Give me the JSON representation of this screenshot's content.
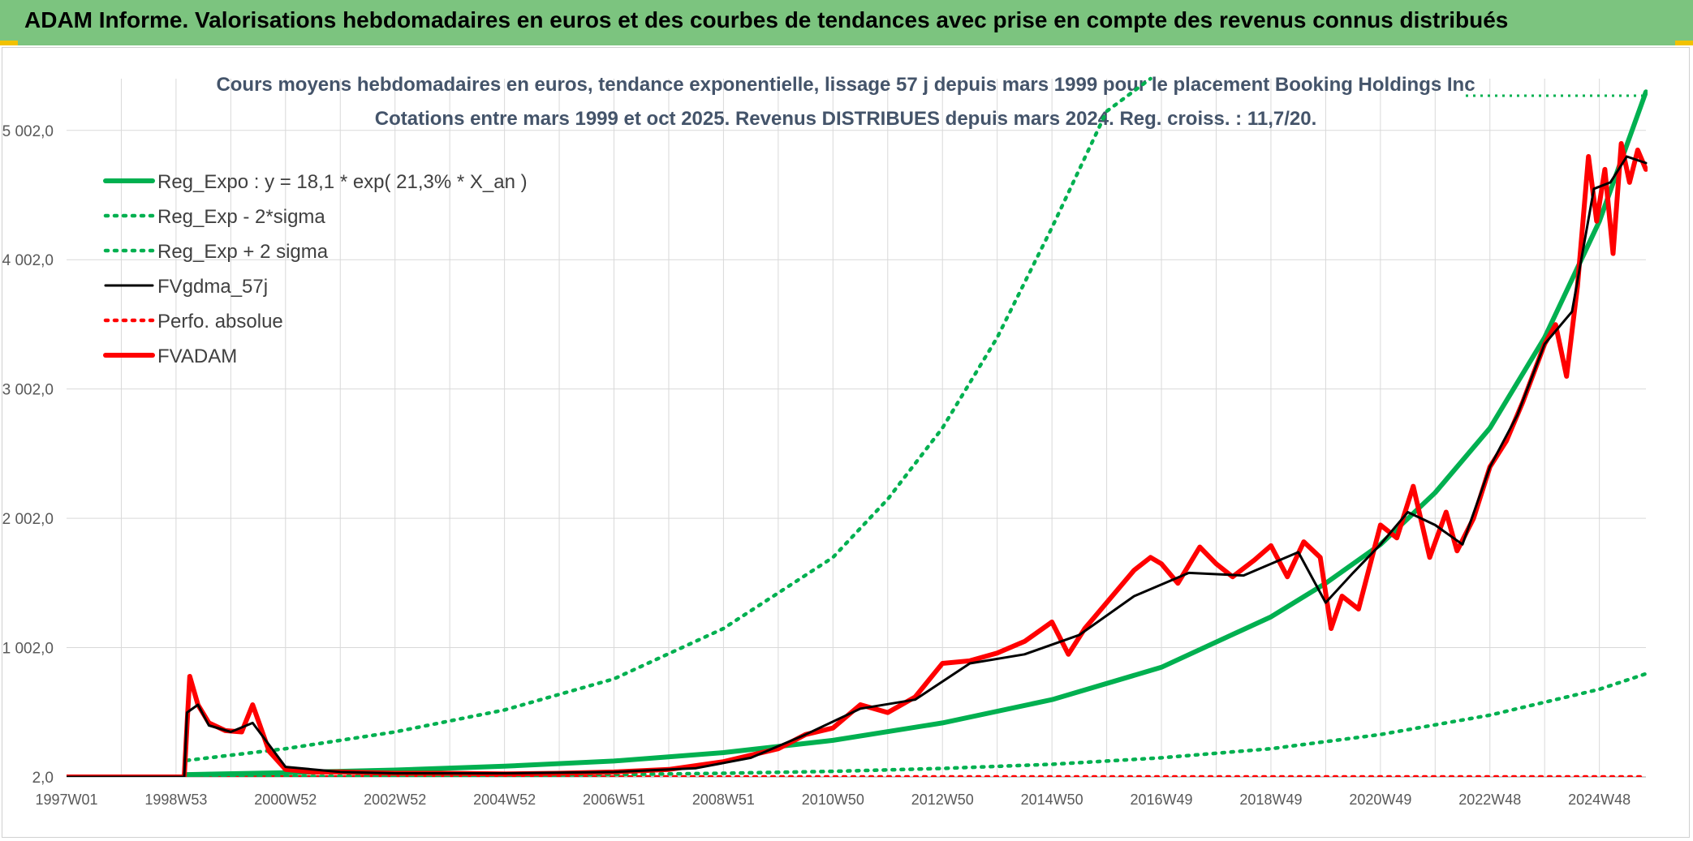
{
  "header": {
    "title": "ADAM Informe. Valorisations hebdomadaires en euros et des courbes de tendances avec prise en compte des revenus connus distribués"
  },
  "colors": {
    "banner": "#7cc47f",
    "reg_expo": "#00b050",
    "fvgdma": "#000000",
    "fvadam": "#ff0000",
    "perfo": "#ff0000",
    "grid": "#d9d9d9"
  },
  "chart_data": {
    "type": "line",
    "title": "Cours moyens hebdomadaires en euros, tendance exponentielle, lissage 57 j depuis mars 1999 pour le placement Booking Holdings Inc",
    "subtitle": "Cotations entre mars 1999 et oct 2025. Revenus DISTRIBUES depuis mars 2024. Reg. croiss. : 11,7/20.",
    "xlabel": "",
    "ylabel": "",
    "x_range": [
      1997.0,
      2025.85
    ],
    "ylim": [
      2.0,
      5402.0
    ],
    "y_ticks": [
      2.0,
      1002.0,
      2002.0,
      3002.0,
      4002.0,
      5002.0
    ],
    "y_tick_labels": [
      "2,0",
      "1 002,0",
      "2 002,0",
      "3 002,0",
      "4 002,0",
      "5 002,0"
    ],
    "x_ticks": [
      1997.0,
      1999.0,
      2001.0,
      2003.0,
      2005.0,
      2007.0,
      2009.0,
      2011.0,
      2013.0,
      2015.0,
      2017.0,
      2019.0,
      2021.0,
      2023.0,
      2025.0
    ],
    "x_tick_labels": [
      "1997W01",
      "1998W53",
      "2000W52",
      "2002W52",
      "2004W52",
      "2006W51",
      "2008W51",
      "2010W50",
      "2012W50",
      "2014W50",
      "2016W49",
      "2018W49",
      "2020W49",
      "2022W48",
      "2024W48"
    ],
    "grid": true,
    "legend_position": "top-left",
    "series": [
      {
        "name": "Reg_Expo : y = 18,1 * exp( 21,3% *  X_an )",
        "style": "solid-thick",
        "color": "#00b050",
        "x": [
          1999.2,
          2001,
          2003,
          2005,
          2007,
          2009,
          2011,
          2013,
          2015,
          2017,
          2019,
          2020,
          2021,
          2022,
          2023,
          2024,
          2025,
          2025.85
        ],
        "values": [
          20,
          35,
          55,
          85,
          125,
          190,
          285,
          420,
          600,
          850,
          1240,
          1500,
          1800,
          2200,
          2700,
          3400,
          4300,
          5300
        ]
      },
      {
        "name": "Reg_Exp - 2*sigma",
        "style": "dotted",
        "color": "#00b050",
        "x": [
          1999.2,
          2001,
          2003,
          2005,
          2007,
          2009,
          2011,
          2013,
          2015,
          2017,
          2019,
          2021,
          2023,
          2025,
          2025.85
        ],
        "values": [
          3,
          5,
          8,
          13,
          20,
          30,
          45,
          68,
          100,
          150,
          220,
          330,
          480,
          680,
          800
        ]
      },
      {
        "name": "Reg_Exp + 2 sigma",
        "style": "dotted",
        "color": "#00b050",
        "x": [
          1999.2,
          2001,
          2003,
          2005,
          2007,
          2009,
          2011,
          2012,
          2013,
          2014,
          2015,
          2016,
          2016.8
        ],
        "values": [
          130,
          220,
          350,
          520,
          760,
          1150,
          1700,
          2150,
          2700,
          3400,
          4250,
          5150,
          5402
        ]
      },
      {
        "name": "FVgdma_57j",
        "style": "solid",
        "color": "#000000",
        "x": [
          1997.0,
          1999.15,
          1999.2,
          1999.4,
          1999.6,
          2000.0,
          2000.4,
          2000.7,
          2001.0,
          2002.0,
          2003.0,
          2005.0,
          2007.0,
          2008.5,
          2009.5,
          2010.5,
          2011.5,
          2012.5,
          2013.5,
          2014.5,
          2015.5,
          2016.5,
          2017.5,
          2018.5,
          2019.5,
          2020.0,
          2020.5,
          2021.0,
          2021.5,
          2022.0,
          2022.5,
          2023.0,
          2023.5,
          2024.0,
          2024.5,
          2024.9,
          2025.2,
          2025.5,
          2025.85
        ],
        "values": [
          2,
          2,
          500,
          560,
          400,
          350,
          420,
          250,
          80,
          40,
          30,
          30,
          40,
          70,
          150,
          330,
          530,
          600,
          880,
          950,
          1100,
          1400,
          1580,
          1560,
          1740,
          1350,
          1580,
          1800,
          2050,
          1950,
          1800,
          2400,
          2800,
          3350,
          3600,
          4550,
          4600,
          4800,
          4750
        ]
      },
      {
        "name": "Perfo. absolue",
        "style": "dotted",
        "color": "#ff0000",
        "x": [
          1997.0,
          2025.85
        ],
        "values": [
          2,
          2
        ]
      },
      {
        "name": "FVADAM",
        "style": "solid-thick",
        "color": "#ff0000",
        "x": [
          1997.0,
          1999.15,
          1999.2,
          1999.25,
          1999.4,
          1999.6,
          1999.9,
          2000.2,
          2000.4,
          2000.7,
          2001.0,
          2001.5,
          2002.0,
          2003.0,
          2004.0,
          2005.0,
          2006.0,
          2007.0,
          2008.0,
          2009.0,
          2009.5,
          2010.0,
          2010.5,
          2011.0,
          2011.5,
          2012.0,
          2012.5,
          2013.0,
          2013.5,
          2014.0,
          2014.5,
          2015.0,
          2015.3,
          2015.6,
          2016.0,
          2016.5,
          2016.8,
          2017.0,
          2017.3,
          2017.7,
          2018.0,
          2018.3,
          2018.7,
          2019.0,
          2019.3,
          2019.6,
          2019.9,
          2020.1,
          2020.3,
          2020.6,
          2021.0,
          2021.3,
          2021.6,
          2021.9,
          2022.2,
          2022.4,
          2022.7,
          2023.0,
          2023.3,
          2023.6,
          2024.0,
          2024.2,
          2024.4,
          2024.6,
          2024.8,
          2024.95,
          2025.1,
          2025.25,
          2025.4,
          2025.55,
          2025.7,
          2025.85
        ],
        "values": [
          2,
          2,
          400,
          780,
          560,
          420,
          360,
          350,
          560,
          200,
          60,
          40,
          40,
          30,
          30,
          25,
          30,
          40,
          60,
          120,
          170,
          220,
          330,
          380,
          560,
          500,
          620,
          880,
          900,
          960,
          1050,
          1200,
          950,
          1150,
          1350,
          1600,
          1700,
          1650,
          1500,
          1780,
          1650,
          1550,
          1680,
          1790,
          1550,
          1820,
          1700,
          1150,
          1400,
          1300,
          1950,
          1850,
          2250,
          1700,
          2050,
          1750,
          2000,
          2400,
          2600,
          2900,
          3350,
          3500,
          3100,
          3800,
          4800,
          4300,
          4700,
          4050,
          4900,
          4600,
          4850,
          4700
        ]
      }
    ]
  }
}
